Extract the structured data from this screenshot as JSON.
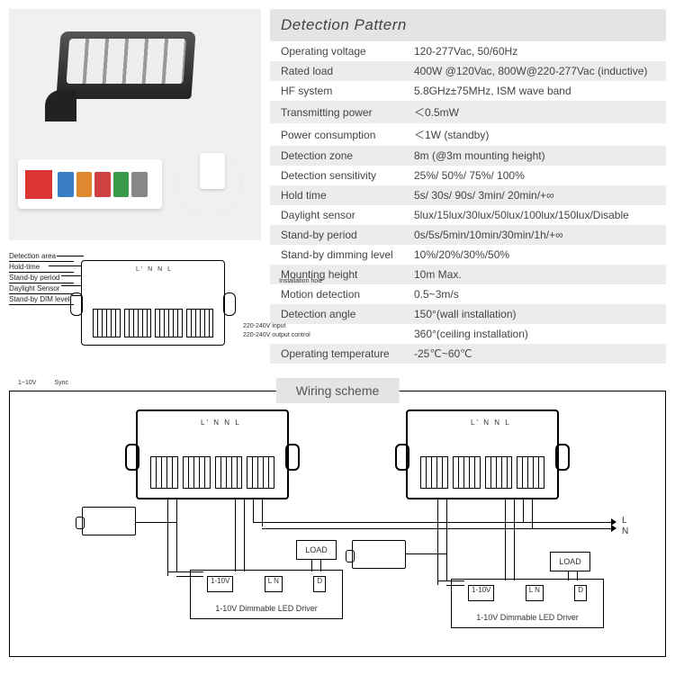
{
  "detection_pattern": {
    "title": "Detection Pattern",
    "rows": [
      {
        "label": "Operating voltage",
        "value": "120-277Vac, 50/60Hz"
      },
      {
        "label": "Rated load",
        "value": "400W @120Vac, 800W@220-277Vac (inductive)"
      },
      {
        "label": "HF system",
        "value": " 5.8GHz±75MHz, ISM wave band"
      },
      {
        "label": "Transmitting power",
        "value": "＜0.5mW"
      },
      {
        "label": "Power consumption",
        "value": "＜1W (standby)"
      },
      {
        "label": "Detection zone",
        "value": "8m (@3m mounting height)"
      },
      {
        "label": "Detection sensitivity",
        "value": "25%/ 50%/ 75%/ 100%"
      },
      {
        "label": "Hold time",
        "value": "  5s/ 30s/ 90s/ 3min/ 20min/+∞"
      },
      {
        "label": "Daylight sensor",
        "value": " 5lux/15lux/30lux/50lux/100lux/150lux/Disable"
      },
      {
        "label": "Stand-by period",
        "value": "0s/5s/5min/10min/30min/1h/+∞"
      },
      {
        "label": "Stand-by dimming level",
        "value": "10%/20%/30%/50%"
      },
      {
        "label": "Mounting height",
        "value": "10m Max."
      },
      {
        "label": "Motion detection",
        "value": "0.5~3m/s"
      },
      {
        "label": "Detection angle",
        "value": "150°(wall installation)"
      },
      {
        "label": "",
        "value": " 360°(ceiling installation)"
      },
      {
        "label": "Operating temperature",
        "value": "-25℃~60℃"
      }
    ]
  },
  "callout": {
    "labels": [
      "Detection area",
      "Hold-time",
      "Stand-by period",
      "Daylight  Sensor",
      "Stand-by DIM level"
    ],
    "top_text": "L' N N L",
    "right_top": "Installation hole",
    "right_mid1": "220-240V input",
    "right_mid2": "220-240V output control",
    "bottom_left": "1~10V",
    "bottom_right": "Sync"
  },
  "wiring": {
    "title": "Wiring   scheme",
    "load": "LOAD",
    "driver": "1-10V Dimmable   LED  Driver",
    "driver_terms_left": "1-10V",
    "driver_terms_mid": "L N",
    "driver_terms_right": "D",
    "top_text": "L' N N L",
    "L": "L",
    "N": "N"
  },
  "colors": {
    "header_bg": "#e4e4e4",
    "row_alt": "#ececec",
    "term_blue": "#3a7fc4",
    "term_orange": "#e08830",
    "term_red": "#d04040",
    "term_green": "#3a9a4a",
    "term_gray": "#888"
  }
}
